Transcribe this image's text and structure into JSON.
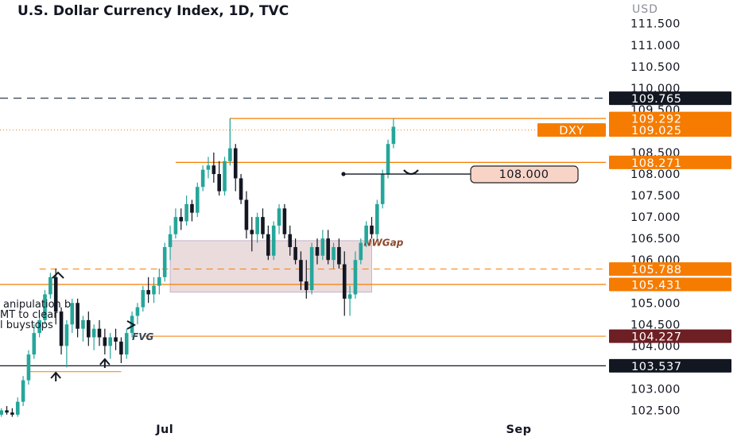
{
  "chart_data": {
    "type": "candlestick",
    "title": "U.S. Dollar Currency Index, 1D, TVC",
    "y_unit": "USD",
    "ylim": [
      102.25,
      112.05
    ],
    "y_ticks": [
      "111.500",
      "111.000",
      "110.500",
      "110.000",
      "109.500",
      "108.500",
      "108.000",
      "107.500",
      "107.000",
      "106.500",
      "106.000",
      "105.000",
      "104.500",
      "104.000",
      "103.000",
      "102.500"
    ],
    "x_ticks": [
      {
        "label": "Jul",
        "index": 32
      },
      {
        "label": "Sep",
        "index": 97
      }
    ],
    "candles": [
      [
        102.55,
        102.6,
        102.4,
        102.45
      ],
      [
        102.45,
        102.5,
        102.35,
        102.4
      ],
      [
        102.4,
        102.55,
        102.35,
        102.5
      ],
      [
        102.5,
        102.6,
        102.4,
        102.45
      ],
      [
        102.45,
        102.55,
        102.35,
        102.4
      ],
      [
        102.4,
        102.8,
        102.35,
        102.7
      ],
      [
        102.7,
        103.3,
        102.6,
        103.2
      ],
      [
        103.2,
        103.9,
        103.1,
        103.8
      ],
      [
        103.8,
        104.5,
        103.7,
        104.3
      ],
      [
        104.3,
        104.8,
        104.2,
        104.6
      ],
      [
        104.6,
        105.3,
        104.5,
        105.2
      ],
      [
        105.2,
        105.7,
        105.1,
        105.6
      ],
      [
        105.6,
        105.8,
        104.5,
        104.8
      ],
      [
        104.8,
        104.9,
        103.8,
        104.0
      ],
      [
        104.0,
        104.6,
        103.5,
        104.5
      ],
      [
        104.5,
        105.1,
        104.3,
        105.0
      ],
      [
        105.0,
        105.1,
        104.2,
        104.4
      ],
      [
        104.4,
        104.7,
        104.1,
        104.6
      ],
      [
        104.6,
        104.8,
        104.0,
        104.2
      ],
      [
        104.2,
        104.5,
        103.9,
        104.4
      ],
      [
        104.4,
        104.6,
        104.0,
        104.2
      ],
      [
        104.2,
        104.4,
        103.8,
        104.0
      ],
      [
        104.0,
        104.3,
        103.7,
        104.2
      ],
      [
        104.2,
        104.4,
        103.9,
        104.1
      ],
      [
        104.1,
        104.2,
        103.6,
        103.8
      ],
      [
        103.8,
        104.4,
        103.7,
        104.3
      ],
      [
        104.3,
        104.8,
        104.2,
        104.7
      ],
      [
        104.7,
        105.0,
        104.5,
        104.9
      ],
      [
        104.9,
        105.4,
        104.8,
        105.3
      ],
      [
        105.3,
        105.6,
        105.0,
        105.2
      ],
      [
        105.2,
        105.6,
        105.0,
        105.4
      ],
      [
        105.4,
        105.8,
        105.2,
        105.6
      ],
      [
        105.6,
        106.4,
        105.5,
        106.3
      ],
      [
        106.3,
        106.8,
        106.0,
        106.6
      ],
      [
        106.6,
        107.2,
        106.5,
        107.0
      ],
      [
        107.0,
        107.2,
        106.7,
        106.9
      ],
      [
        106.9,
        107.5,
        106.8,
        107.3
      ],
      [
        107.3,
        107.4,
        106.9,
        107.1
      ],
      [
        107.1,
        107.8,
        107.0,
        107.7
      ],
      [
        107.7,
        108.2,
        107.6,
        108.1
      ],
      [
        108.1,
        108.4,
        107.9,
        108.2
      ],
      [
        108.2,
        108.5,
        107.8,
        108.0
      ],
      [
        108.0,
        108.3,
        107.5,
        107.6
      ],
      [
        107.6,
        108.4,
        107.5,
        108.3
      ],
      [
        108.3,
        109.3,
        108.2,
        108.6
      ],
      [
        108.6,
        108.7,
        107.6,
        107.9
      ],
      [
        107.9,
        108.0,
        107.3,
        107.4
      ],
      [
        107.4,
        107.6,
        106.5,
        106.7
      ],
      [
        106.7,
        107.0,
        106.2,
        106.6
      ],
      [
        106.6,
        107.1,
        106.4,
        107.0
      ],
      [
        107.0,
        107.2,
        106.5,
        106.6
      ],
      [
        106.6,
        106.8,
        106.0,
        106.1
      ],
      [
        106.1,
        106.9,
        106.0,
        106.8
      ],
      [
        106.8,
        107.3,
        106.6,
        107.2
      ],
      [
        107.2,
        107.3,
        106.5,
        106.6
      ],
      [
        106.6,
        106.8,
        106.1,
        106.3
      ],
      [
        106.3,
        106.5,
        105.9,
        106.0
      ],
      [
        106.0,
        106.2,
        105.3,
        105.5
      ],
      [
        105.5,
        106.0,
        105.1,
        105.3
      ],
      [
        105.3,
        106.4,
        105.2,
        106.3
      ],
      [
        106.3,
        106.5,
        105.9,
        106.1
      ],
      [
        106.1,
        106.7,
        106.0,
        106.5
      ],
      [
        106.5,
        106.7,
        105.9,
        106.0
      ],
      [
        106.0,
        106.4,
        105.8,
        106.3
      ],
      [
        106.3,
        106.5,
        105.8,
        105.9
      ],
      [
        105.9,
        106.2,
        104.7,
        105.1
      ],
      [
        105.1,
        105.4,
        104.7,
        105.2
      ],
      [
        105.2,
        106.2,
        105.1,
        106.0
      ],
      [
        106.0,
        106.5,
        105.9,
        106.4
      ],
      [
        106.4,
        106.9,
        106.3,
        106.8
      ],
      [
        106.8,
        107.0,
        106.5,
        106.6
      ],
      [
        106.6,
        107.4,
        106.5,
        107.3
      ],
      [
        107.3,
        108.1,
        107.2,
        108.0
      ],
      [
        108.0,
        108.8,
        107.9,
        108.7
      ],
      [
        108.7,
        109.3,
        108.6,
        109.1
      ]
    ],
    "levels": [
      {
        "value": 109.765,
        "label": "109.765",
        "style": "dashed-dark"
      },
      {
        "value": 109.292,
        "label": "109.292",
        "style": "orange"
      },
      {
        "value": 109.025,
        "label": "109.025",
        "style": "current",
        "tag": "DXY"
      },
      {
        "value": 108.271,
        "label": "108.271",
        "style": "orange"
      },
      {
        "value": 105.788,
        "label": "105.788",
        "style": "orange-dashed"
      },
      {
        "value": 105.431,
        "label": "105.431",
        "style": "orange"
      },
      {
        "value": 104.227,
        "label": "104.227",
        "style": "maroon"
      },
      {
        "value": 103.537,
        "label": "103.537",
        "style": "black"
      }
    ],
    "target": {
      "value": 108.0,
      "label": "108.000"
    },
    "zone": {
      "start_index": 33,
      "end_index": 70,
      "high": 106.45,
      "low": 105.25,
      "label": "NWGap"
    },
    "fvg": {
      "value": 104.227,
      "label": "FVG"
    },
    "annotation_lines": [
      "anipulation b",
      "MT to clear",
      "l buystops"
    ],
    "colors": {
      "up": "#26a69a",
      "down": "#131722",
      "orange": "#f57c00",
      "maroon": "#6d1f24",
      "dark": "#131722",
      "zone": "#c9a0a6"
    }
  }
}
